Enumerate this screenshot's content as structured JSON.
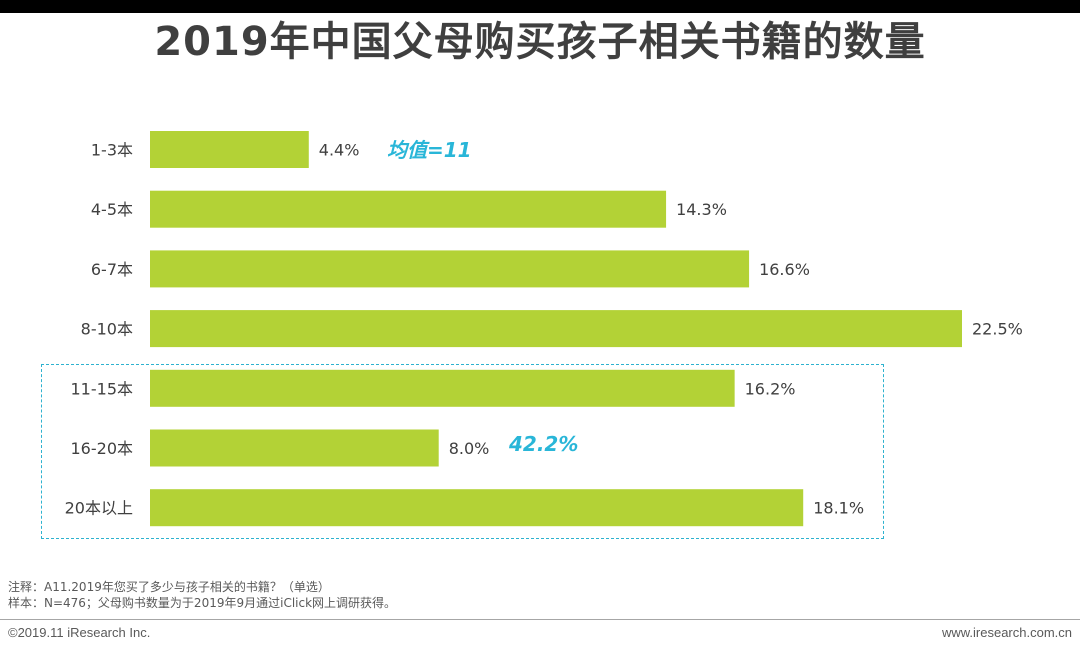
{
  "title": "2019年中国父母购买孩子相关书籍的数量",
  "chart_data": {
    "type": "bar",
    "orientation": "horizontal",
    "categories": [
      "1-3本",
      "4-5本",
      "6-7本",
      "8-10本",
      "11-15本",
      "16-20本",
      "20本以上"
    ],
    "values": [
      4.4,
      14.3,
      16.6,
      22.5,
      16.2,
      8.0,
      18.1
    ],
    "value_labels": [
      "4.4%",
      "14.3%",
      "16.6%",
      "22.5%",
      "16.2%",
      "8.0%",
      "18.1%"
    ],
    "unit": "%",
    "xlim": [
      0,
      22.5
    ],
    "grid": false,
    "bar_color": "#b3d236",
    "annotations": {
      "mean": "均值=11",
      "highlight_group": "42.2%"
    }
  },
  "colors": {
    "accent": "#29b6d8",
    "bar": "#b3d236"
  },
  "notes": {
    "line1": "注释：A11.2019年您买了多少与孩子相关的书籍？（单选）",
    "line2": "样本：N=476；父母购书数量为于2019年9月通过iClick网上调研获得。"
  },
  "footer": {
    "copyright": "©2019.11 iResearch Inc.",
    "website": "www.iresearch.com.cn"
  }
}
